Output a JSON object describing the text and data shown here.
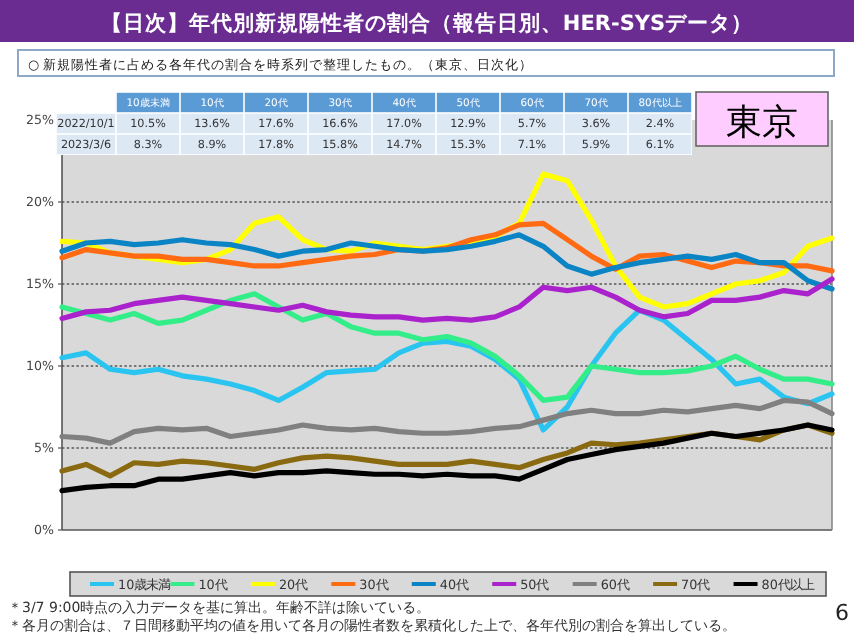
{
  "chart_data": {
    "type": "line",
    "title": "【日次】年代別新規陽性者の割合（報告日別、HER-SYSデータ）",
    "subtitle": "○ 新規陽性者に占める各年代の割合を時系列で整理したもの。（東京、日次化）",
    "categories": [
      null,
      null,
      null,
      null,
      null,
      null,
      null,
      null,
      null,
      null,
      null,
      null,
      null,
      null,
      null,
      null,
      null,
      null,
      null,
      null,
      null,
      null,
      null,
      null,
      null,
      null,
      null,
      null,
      null,
      null,
      null,
      null,
      null
    ],
    "ylim": [
      0,
      25
    ],
    "yticks": [
      {
        "value": 0,
        "label": "0%"
      },
      {
        "value": 5,
        "label": "5%"
      },
      {
        "value": 10,
        "label": "10%"
      },
      {
        "value": 15,
        "label": "15%"
      },
      {
        "value": 20,
        "label": "20%"
      },
      {
        "value": 25,
        "label": "25%"
      }
    ],
    "tick_labels": "y",
    "grid": "y",
    "legend": "bottom",
    "line_style": "solid",
    "series": [
      {
        "name": "10歳未満",
        "color": "#29c5f0",
        "values": [
          10.5,
          10.8,
          9.8,
          9.6,
          9.8,
          9.4,
          9.2,
          8.9,
          8.5,
          7.9,
          8.7,
          9.6,
          9.7,
          9.8,
          10.8,
          11.4,
          11.5,
          11.2,
          10.4,
          9.2,
          6.1,
          7.5,
          10.0,
          12.0,
          13.4,
          12.8,
          11.6,
          10.4,
          8.9,
          9.2,
          8.1,
          7.7,
          8.3
        ]
      },
      {
        "name": "10代",
        "color": "#33ee88",
        "values": [
          13.6,
          13.2,
          12.8,
          13.2,
          12.6,
          12.8,
          13.4,
          14.0,
          14.4,
          13.6,
          12.8,
          13.2,
          12.4,
          12.0,
          12.0,
          11.6,
          11.8,
          11.4,
          10.6,
          9.4,
          7.9,
          8.1,
          10.0,
          9.8,
          9.6,
          9.6,
          9.7,
          10.0,
          10.6,
          9.8,
          9.2,
          9.2,
          8.9
        ]
      },
      {
        "name": "20代",
        "color": "#ffff00",
        "values": [
          17.6,
          17.5,
          16.9,
          16.7,
          16.5,
          16.3,
          16.5,
          17.1,
          18.7,
          19.1,
          17.7,
          17.1,
          17.0,
          17.5,
          17.3,
          17.1,
          17.3,
          17.5,
          17.9,
          18.7,
          21.7,
          21.3,
          18.9,
          16.1,
          14.2,
          13.6,
          13.8,
          14.4,
          15.0,
          15.2,
          15.7,
          17.3,
          17.8
        ]
      },
      {
        "name": "30代",
        "color": "#ff6a13",
        "values": [
          16.6,
          17.1,
          16.9,
          16.7,
          16.7,
          16.5,
          16.5,
          16.3,
          16.1,
          16.1,
          16.3,
          16.5,
          16.7,
          16.8,
          17.1,
          17.0,
          17.2,
          17.7,
          18.0,
          18.6,
          18.7,
          17.7,
          16.7,
          15.9,
          16.7,
          16.8,
          16.4,
          16.0,
          16.4,
          16.3,
          16.1,
          16.1,
          15.8
        ]
      },
      {
        "name": "40代",
        "color": "#0a84c4",
        "values": [
          17.0,
          17.5,
          17.6,
          17.4,
          17.5,
          17.7,
          17.5,
          17.4,
          17.1,
          16.7,
          17.0,
          17.1,
          17.5,
          17.3,
          17.1,
          17.0,
          17.1,
          17.3,
          17.6,
          18.0,
          17.3,
          16.1,
          15.6,
          16.0,
          16.3,
          16.5,
          16.7,
          16.5,
          16.8,
          16.3,
          16.3,
          15.2,
          14.7
        ]
      },
      {
        "name": "50代",
        "color": "#aa22cc",
        "values": [
          12.9,
          13.3,
          13.4,
          13.8,
          14.0,
          14.2,
          14.0,
          13.8,
          13.6,
          13.4,
          13.7,
          13.3,
          13.1,
          13.0,
          13.0,
          12.8,
          12.9,
          12.8,
          13.0,
          13.6,
          14.8,
          14.6,
          14.8,
          14.2,
          13.4,
          13.0,
          13.2,
          14.0,
          14.0,
          14.2,
          14.6,
          14.4,
          15.3
        ]
      },
      {
        "name": "60代",
        "color": "#808080",
        "values": [
          5.7,
          5.6,
          5.3,
          6.0,
          6.2,
          6.1,
          6.2,
          5.7,
          5.9,
          6.1,
          6.4,
          6.2,
          6.1,
          6.2,
          6.0,
          5.9,
          5.9,
          6.0,
          6.2,
          6.3,
          6.7,
          7.1,
          7.3,
          7.1,
          7.1,
          7.3,
          7.2,
          7.4,
          7.6,
          7.4,
          7.9,
          7.8,
          7.1
        ]
      },
      {
        "name": "70代",
        "color": "#8a6a10",
        "values": [
          3.6,
          4.0,
          3.3,
          4.1,
          4.0,
          4.2,
          4.1,
          3.9,
          3.7,
          4.1,
          4.4,
          4.5,
          4.4,
          4.2,
          4.0,
          4.0,
          4.0,
          4.2,
          4.0,
          3.8,
          4.3,
          4.7,
          5.3,
          5.2,
          5.3,
          5.5,
          5.7,
          5.9,
          5.7,
          5.5,
          6.1,
          6.4,
          5.9
        ]
      },
      {
        "name": "80代以上",
        "color": "#000000",
        "values": [
          2.4,
          2.6,
          2.7,
          2.7,
          3.1,
          3.1,
          3.3,
          3.5,
          3.3,
          3.5,
          3.5,
          3.6,
          3.5,
          3.4,
          3.4,
          3.3,
          3.4,
          3.3,
          3.3,
          3.1,
          3.7,
          4.3,
          4.6,
          4.9,
          5.1,
          5.3,
          5.6,
          5.9,
          5.7,
          5.9,
          6.1,
          6.4,
          6.1
        ]
      }
    ],
    "annotations": [
      "東京",
      "6",
      "＊3/7 9:00時点の入力データを基に算出。年齢不詳は除いている。",
      "＊各月の割合は、７日間移動平均の値を用いて各月の陽性者数を累積化した上で、各年代別の割合を算出している。",
      "2022/10/1",
      "2023/3/6",
      "10.5%",
      "13.6%",
      "17.6%",
      "16.6%",
      "17.0%",
      "12.9%",
      "5.7%",
      "3.6%",
      "2.4%",
      "8.3%",
      "8.9%",
      "17.8%",
      "15.8%",
      "14.7%",
      "15.3%",
      "7.1%",
      "5.9%",
      "6.1%"
    ]
  }
}
